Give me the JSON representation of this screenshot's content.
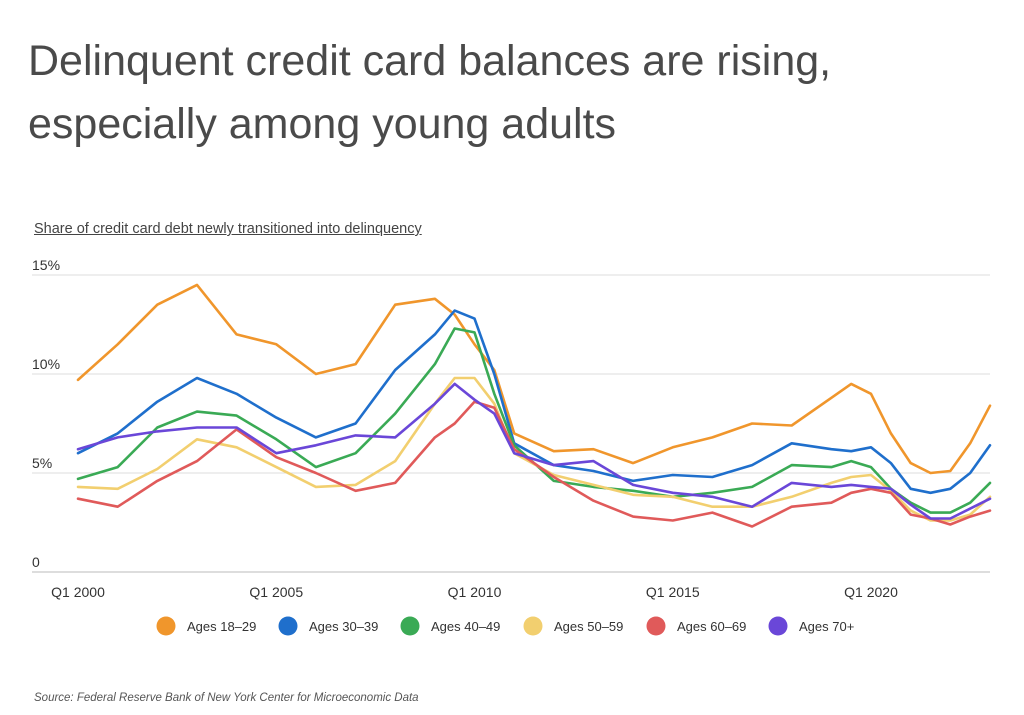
{
  "title": "Delinquent credit card balances are rising, especially among young adults",
  "subtitle": "Share of credit card debt newly transitioned into delinquency",
  "source": "Source: Federal Reserve Bank of New York Center for Microeconomic Data",
  "chart_data": {
    "type": "line",
    "title": "",
    "xlabel": "",
    "ylabel": "",
    "ylim": [
      0,
      15
    ],
    "xlim": [
      2000.0,
      2023.0
    ],
    "grid": true,
    "legend_position": "bottom",
    "yticks": [
      {
        "value": 0,
        "label": "0"
      },
      {
        "value": 5,
        "label": "5%"
      },
      {
        "value": 10,
        "label": "10%"
      },
      {
        "value": 15,
        "label": "15%"
      }
    ],
    "xticks": [
      {
        "value": 2000,
        "label": "Q1 2000"
      },
      {
        "value": 2005,
        "label": "Q1 2005"
      },
      {
        "value": 2010,
        "label": "Q1 2010"
      },
      {
        "value": 2015,
        "label": "Q1 2015"
      },
      {
        "value": 2020,
        "label": "Q1 2020"
      }
    ],
    "x": [
      2000.0,
      2001.0,
      2002.0,
      2003.0,
      2004.0,
      2005.0,
      2006.0,
      2007.0,
      2008.0,
      2009.0,
      2009.5,
      2010.0,
      2010.5,
      2011.0,
      2012.0,
      2013.0,
      2014.0,
      2015.0,
      2016.0,
      2017.0,
      2018.0,
      2019.0,
      2019.5,
      2020.0,
      2020.5,
      2021.0,
      2021.5,
      2022.0,
      2022.5,
      2023.0
    ],
    "series": [
      {
        "name": "Ages 18–29",
        "color": "#f0962c",
        "values": [
          9.7,
          11.5,
          13.5,
          14.5,
          12.0,
          11.5,
          10.0,
          10.5,
          13.5,
          13.8,
          13.0,
          11.5,
          10.2,
          7.0,
          6.1,
          6.2,
          5.5,
          6.3,
          6.8,
          7.5,
          7.4,
          8.8,
          9.5,
          9.0,
          7.0,
          5.5,
          5.0,
          5.1,
          6.5,
          8.4
        ]
      },
      {
        "name": "Ages 30–39",
        "color": "#1f6fcc",
        "values": [
          6.0,
          7.0,
          8.6,
          9.8,
          9.0,
          7.8,
          6.8,
          7.5,
          10.2,
          12.0,
          13.2,
          12.8,
          10.0,
          6.5,
          5.4,
          5.1,
          4.6,
          4.9,
          4.8,
          5.4,
          6.5,
          6.2,
          6.1,
          6.3,
          5.5,
          4.2,
          4.0,
          4.2,
          5.0,
          6.4
        ]
      },
      {
        "name": "Ages 40–49",
        "color": "#3aaa55",
        "values": [
          4.7,
          5.3,
          7.3,
          8.1,
          7.9,
          6.7,
          5.3,
          6.0,
          8.0,
          10.5,
          12.3,
          12.1,
          9.0,
          6.4,
          4.6,
          4.3,
          4.1,
          3.8,
          4.0,
          4.3,
          5.4,
          5.3,
          5.6,
          5.3,
          4.2,
          3.5,
          3.0,
          3.0,
          3.5,
          4.5
        ]
      },
      {
        "name": "Ages 50–59",
        "color": "#f2cf6f",
        "values": [
          4.3,
          4.2,
          5.2,
          6.7,
          6.3,
          5.3,
          4.3,
          4.4,
          5.6,
          8.5,
          9.8,
          9.8,
          8.5,
          6.0,
          4.9,
          4.4,
          3.9,
          3.8,
          3.3,
          3.3,
          3.8,
          4.5,
          4.8,
          4.9,
          4.1,
          3.1,
          2.6,
          2.6,
          2.9,
          3.8
        ]
      },
      {
        "name": "Ages 60–69",
        "color": "#e05a5a",
        "values": [
          3.7,
          3.3,
          4.6,
          5.6,
          7.2,
          5.8,
          5.0,
          4.1,
          4.5,
          6.8,
          7.5,
          8.6,
          8.3,
          6.2,
          4.8,
          3.6,
          2.8,
          2.6,
          3.0,
          2.3,
          3.3,
          3.5,
          4.0,
          4.2,
          4.0,
          2.9,
          2.7,
          2.4,
          2.8,
          3.1
        ]
      },
      {
        "name": "Ages 70+",
        "color": "#6a47d8",
        "values": [
          6.2,
          6.8,
          7.1,
          7.3,
          7.3,
          6.0,
          6.4,
          6.9,
          6.8,
          8.5,
          9.5,
          8.7,
          8.0,
          6.0,
          5.4,
          5.6,
          4.4,
          4.0,
          3.8,
          3.3,
          4.5,
          4.3,
          4.4,
          4.3,
          4.2,
          3.4,
          2.7,
          2.7,
          3.2,
          3.7
        ]
      }
    ]
  }
}
